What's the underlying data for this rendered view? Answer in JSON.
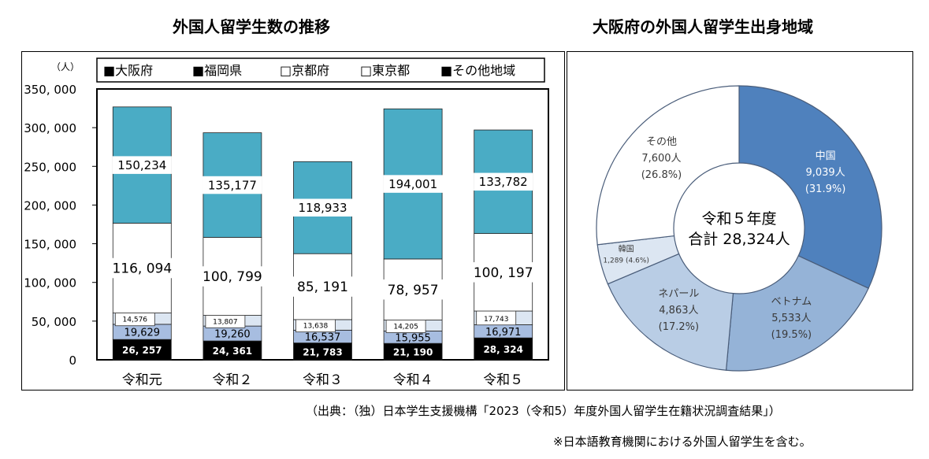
{
  "left_title": "外国人留学生数の推移",
  "right_title": "大阪府の外国人留学生出身地域",
  "footer_source": "（出典：（独）日本学生支援機構「2023（令和5）年度外国人留学生在籍状況調査結果」）",
  "footer_note": "※日本語教育機関における外国人留学生を含む。",
  "chart_data": [
    {
      "type": "bar",
      "stacked": true,
      "unit_label": "（人）",
      "categories": [
        "令和元",
        "令和２",
        "令和３",
        "令和４",
        "令和５"
      ],
      "ylim": [
        0,
        350000
      ],
      "yticks": [
        0,
        50000,
        100000,
        150000,
        200000,
        250000,
        300000,
        350000
      ],
      "ytick_labels": [
        "0",
        "50, 000",
        "100, 000",
        "150, 000",
        "200, 000",
        "250, 000",
        "300, 000",
        "350, 000"
      ],
      "legend_position": "top",
      "series": [
        {
          "name": "大阪府",
          "legend_marker": "■",
          "color": "#000000",
          "text_color": "#ffffff",
          "values": [
            26257,
            24361,
            21783,
            21190,
            28324
          ],
          "labels": [
            "26, 257",
            "24, 361",
            "21, 783",
            "21, 190",
            "28, 324"
          ]
        },
        {
          "name": "福岡県",
          "legend_marker": "■",
          "color": "#a7bde0",
          "text_color": "#000000",
          "values": [
            19629,
            19260,
            16537,
            15955,
            16971
          ],
          "labels": [
            "19,629",
            "19,260",
            "16,537",
            "15,955",
            "16,971"
          ]
        },
        {
          "name": "京都府",
          "legend_marker": "□",
          "color": "#dce6f2",
          "text_color": "#000000",
          "values": [
            14576,
            13807,
            13638,
            14205,
            17743
          ],
          "labels": [
            "14,576",
            "13,807",
            "13,638",
            "14,205",
            "17,743"
          ]
        },
        {
          "name": "東京都",
          "legend_marker": "□",
          "color": "#ffffff",
          "text_color": "#000000",
          "values": [
            116094,
            100799,
            85191,
            78957,
            100197
          ],
          "labels": [
            "116, 094",
            "100, 799",
            "85, 191",
            "78, 957",
            "100, 197"
          ]
        },
        {
          "name": "その他地域",
          "legend_marker": "■",
          "color": "#4aacc5",
          "text_color": "#000000",
          "values": [
            150234,
            135177,
            118933,
            194001,
            133782
          ],
          "labels": [
            "150,234",
            "135,177",
            "118,933",
            "194,001",
            "133,782"
          ]
        }
      ]
    },
    {
      "type": "pie",
      "donut": true,
      "center_label_line1": "令和５年度",
      "center_label_line2": "合計 28,324人",
      "slices": [
        {
          "name": "中国",
          "value": 9039,
          "value_label": "9,039人",
          "percent_label": "(31.9%)",
          "color": "#4f81bd",
          "text_color": "#ffffff"
        },
        {
          "name": "ベトナム",
          "value": 5533,
          "value_label": "5,533人",
          "percent_label": "(19.5%)",
          "color": "#95b3d7",
          "text_color": "#3a3a3a"
        },
        {
          "name": "ネパール",
          "value": 4863,
          "value_label": "4,863人",
          "percent_label": "(17.2%)",
          "color": "#b9cde5",
          "text_color": "#3a3a3a"
        },
        {
          "name": "韓国",
          "value": 1289,
          "value_label": "1,289 (4.6%)",
          "percent_label": "",
          "color": "#dce6f2",
          "text_color": "#3a3a3a"
        },
        {
          "name": "その他",
          "value": 7600,
          "value_label": "7,600人",
          "percent_label": "(26.8%)",
          "color": "#ffffff",
          "text_color": "#3a3a3a"
        }
      ]
    }
  ]
}
